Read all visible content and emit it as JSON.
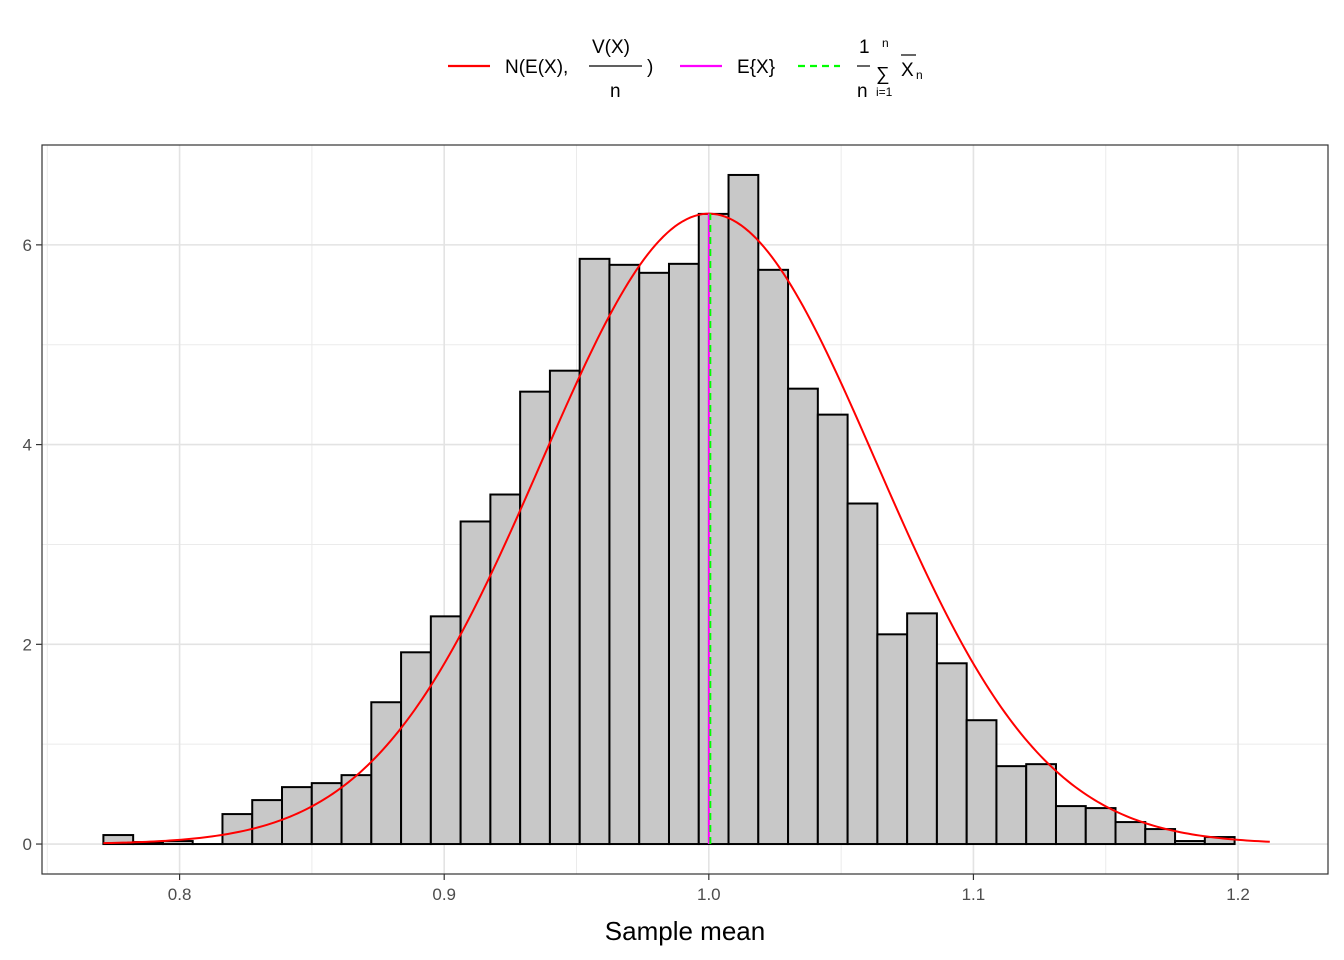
{
  "chart_data": {
    "type": "bar",
    "title": "",
    "xlabel": "Sample mean",
    "ylabel": "",
    "xlim": [
      0.748,
      1.234
    ],
    "ylim": [
      -0.3,
      7.0
    ],
    "x_ticks": [
      0.8,
      0.9,
      1.0,
      1.1,
      1.2
    ],
    "x_tick_labels": [
      "0.8",
      "0.9",
      "1.0",
      "1.1",
      "1.2"
    ],
    "y_ticks": [
      0,
      2,
      4,
      6
    ],
    "y_tick_labels": [
      "0",
      "2",
      "4",
      "6"
    ],
    "grid": true,
    "histogram": {
      "bin_width": 0.01125,
      "first_left": 0.7712,
      "fill": "#c8c8c8",
      "stroke": "#000000",
      "values": [
        0.09,
        0.02,
        0.03,
        0.0,
        0.3,
        0.44,
        0.57,
        0.61,
        0.69,
        1.42,
        1.92,
        2.28,
        3.23,
        3.5,
        4.53,
        4.74,
        5.86,
        5.8,
        5.72,
        5.81,
        6.31,
        6.7,
        5.75,
        4.56,
        4.3,
        3.41,
        2.1,
        2.31,
        1.81,
        1.24,
        0.78,
        0.8,
        0.38,
        0.36,
        0.22,
        0.15,
        0.03,
        0.07
      ]
    },
    "normal_curve": {
      "mean": 1.0,
      "sd": 0.0632,
      "x_range": [
        0.7712,
        1.212
      ],
      "color": "#ff0000"
    },
    "expected_line": {
      "x": 1.0,
      "color": "#ff00ff"
    },
    "sample_mean_line": {
      "x": 1.0,
      "color": "#00ff00",
      "dash": true
    },
    "legend": {
      "position": "top",
      "entries": [
        {
          "key": "normal",
          "color": "#ff0000",
          "dashed": false
        },
        {
          "key": "expected",
          "color": "#ff00ff",
          "dashed": false
        },
        {
          "key": "mean",
          "color": "#00ff00",
          "dashed": true
        }
      ],
      "normal_label": {
        "prefix": "N(E(X),",
        "numerator": "V(X)",
        "denominator": "n",
        "suffix": ")"
      },
      "expected_label": "E{X}",
      "mean_label": {
        "numerator": "1",
        "denominator": "n",
        "sum_upper": "n",
        "sum_symbol": "∑",
        "sum_lower": "i=1",
        "xbar": "X",
        "sub": "n"
      }
    }
  }
}
